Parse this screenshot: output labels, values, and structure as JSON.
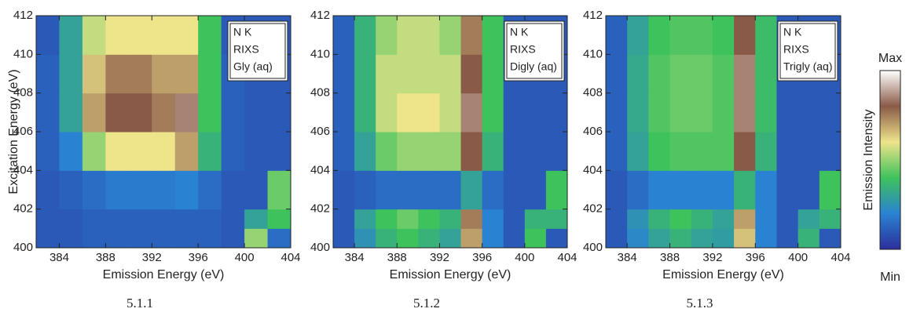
{
  "chart_data": [
    {
      "type": "heatmap",
      "xlabel": "Emission Energy (eV)",
      "ylabel": "Excitation Energy (eV)",
      "caption": "5.1.1",
      "legend_text": [
        "N K",
        "RIXS",
        "Gly (aq)"
      ],
      "xlim": [
        382,
        404
      ],
      "ylim": [
        400,
        412
      ],
      "xticks": [
        384,
        388,
        392,
        396,
        400,
        404
      ],
      "yticks": [
        400,
        402,
        404,
        406,
        408,
        410,
        412
      ],
      "x_bins": [
        382,
        384,
        386,
        388,
        390,
        392,
        394,
        396,
        398,
        400,
        402,
        404
      ],
      "y_bins": [
        400,
        401,
        402,
        404,
        406,
        408,
        410,
        412
      ],
      "z": [
        [
          0.1,
          0.1,
          0.12,
          0.12,
          0.12,
          0.12,
          0.12,
          0.12,
          0.1,
          0.5,
          0.15
        ],
        [
          0.1,
          0.1,
          0.12,
          0.12,
          0.12,
          0.12,
          0.12,
          0.12,
          0.1,
          0.3,
          0.4
        ],
        [
          0.1,
          0.12,
          0.15,
          0.18,
          0.18,
          0.18,
          0.2,
          0.15,
          0.1,
          0.1,
          0.45
        ],
        [
          0.12,
          0.2,
          0.5,
          0.6,
          0.6,
          0.6,
          0.7,
          0.35,
          0.12,
          0.1,
          0.1
        ],
        [
          0.12,
          0.3,
          0.7,
          0.8,
          0.8,
          0.75,
          0.85,
          0.4,
          0.12,
          0.1,
          0.1
        ],
        [
          0.12,
          0.3,
          0.65,
          0.75,
          0.75,
          0.7,
          0.7,
          0.4,
          0.12,
          0.1,
          0.1
        ],
        [
          0.1,
          0.3,
          0.55,
          0.6,
          0.6,
          0.6,
          0.6,
          0.4,
          0.1,
          0.1,
          0.1
        ]
      ]
    },
    {
      "type": "heatmap",
      "xlabel": "Emission Energy (eV)",
      "caption": "5.1.2",
      "legend_text": [
        "N K",
        "RIXS",
        "Digly (aq)"
      ],
      "xlim": [
        382,
        404
      ],
      "ylim": [
        400,
        412
      ],
      "xticks": [
        384,
        388,
        392,
        396,
        400,
        404
      ],
      "yticks": [
        400,
        402,
        404,
        406,
        408,
        410,
        412
      ],
      "x_bins": [
        382,
        384,
        386,
        388,
        390,
        392,
        394,
        396,
        398,
        400,
        402,
        404
      ],
      "y_bins": [
        400,
        401,
        402,
        404,
        406,
        408,
        410,
        412
      ],
      "z": [
        [
          0.1,
          0.25,
          0.35,
          0.4,
          0.35,
          0.3,
          0.7,
          0.2,
          0.1,
          0.4,
          0.1
        ],
        [
          0.1,
          0.3,
          0.4,
          0.45,
          0.4,
          0.35,
          0.75,
          0.2,
          0.1,
          0.35,
          0.35
        ],
        [
          0.1,
          0.12,
          0.15,
          0.15,
          0.15,
          0.15,
          0.3,
          0.15,
          0.1,
          0.1,
          0.4
        ],
        [
          0.12,
          0.3,
          0.45,
          0.5,
          0.5,
          0.5,
          0.8,
          0.35,
          0.1,
          0.1,
          0.1
        ],
        [
          0.12,
          0.35,
          0.55,
          0.6,
          0.6,
          0.55,
          0.85,
          0.4,
          0.1,
          0.1,
          0.1
        ],
        [
          0.12,
          0.35,
          0.55,
          0.55,
          0.55,
          0.55,
          0.8,
          0.4,
          0.1,
          0.1,
          0.1
        ],
        [
          0.12,
          0.35,
          0.5,
          0.55,
          0.55,
          0.5,
          0.75,
          0.4,
          0.1,
          0.1,
          0.1
        ]
      ]
    },
    {
      "type": "heatmap",
      "xlabel": "Emission Energy (eV)",
      "caption": "5.1.3",
      "legend_text": [
        "N K",
        "RIXS",
        "Trigly (aq)"
      ],
      "xlim": [
        382,
        404
      ],
      "ylim": [
        400,
        412
      ],
      "xticks": [
        384,
        388,
        392,
        396,
        400,
        404
      ],
      "yticks": [
        400,
        402,
        404,
        406,
        408,
        410,
        412
      ],
      "x_bins": [
        382,
        384,
        386,
        388,
        390,
        392,
        394,
        396,
        398,
        400,
        402,
        404
      ],
      "y_bins": [
        400,
        401,
        402,
        404,
        406,
        408,
        410,
        412
      ],
      "z": [
        [
          0.1,
          0.22,
          0.3,
          0.35,
          0.3,
          0.28,
          0.65,
          0.2,
          0.1,
          0.35,
          0.1
        ],
        [
          0.1,
          0.25,
          0.35,
          0.4,
          0.35,
          0.3,
          0.7,
          0.2,
          0.1,
          0.3,
          0.35
        ],
        [
          0.1,
          0.15,
          0.2,
          0.2,
          0.2,
          0.2,
          0.35,
          0.2,
          0.1,
          0.1,
          0.4
        ],
        [
          0.12,
          0.3,
          0.4,
          0.42,
          0.42,
          0.42,
          0.8,
          0.35,
          0.1,
          0.1,
          0.1
        ],
        [
          0.12,
          0.32,
          0.42,
          0.45,
          0.45,
          0.42,
          0.85,
          0.38,
          0.1,
          0.1,
          0.1
        ],
        [
          0.12,
          0.32,
          0.42,
          0.45,
          0.45,
          0.42,
          0.85,
          0.38,
          0.1,
          0.1,
          0.1
        ],
        [
          0.12,
          0.3,
          0.4,
          0.42,
          0.42,
          0.4,
          0.8,
          0.38,
          0.1,
          0.1,
          0.1
        ]
      ]
    }
  ],
  "colorbar": {
    "label": "Emission Intensity",
    "zlim": [
      0,
      1
    ],
    "ticks": [
      {
        "value": 1,
        "label": "Max"
      },
      {
        "value": 0,
        "label": "Min"
      }
    ],
    "colormap": [
      "#2b2f9c",
      "#2a82d2",
      "#3ec25c",
      "#eee48a",
      "#8a5a48",
      "#ffffff"
    ]
  }
}
